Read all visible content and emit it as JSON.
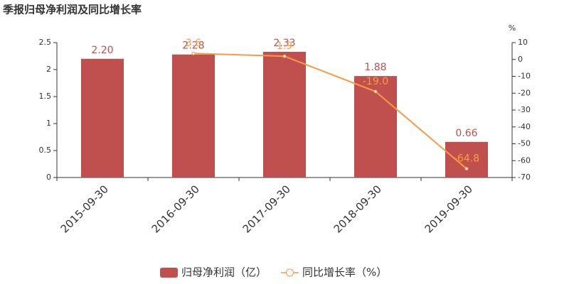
{
  "chart_data": {
    "type": "bar-line",
    "title": "季报归母净利润及同比增长率",
    "y2_label": "%",
    "categories": [
      "2015-09-30",
      "2016-09-30",
      "2017-09-30",
      "2018-09-30",
      "2019-09-30"
    ],
    "series": [
      {
        "name": "归母净利润（亿）",
        "type": "bar",
        "color": "#c0504d",
        "values": [
          2.2,
          2.28,
          2.33,
          1.88,
          0.66
        ],
        "value_labels": [
          "2.20",
          "2.28",
          "2.33",
          "1.88",
          "0.66"
        ]
      },
      {
        "name": "同比增长率（%）",
        "type": "line",
        "axis": "y2",
        "color": "#f79b46",
        "values": [
          null,
          3.6,
          1.9,
          -19.0,
          -64.8
        ],
        "value_labels": [
          null,
          "3.6",
          "1.9",
          "-19.0",
          "-64.8"
        ]
      }
    ],
    "ylim": [
      0,
      2.5
    ],
    "yticks": [
      0,
      0.5,
      1,
      1.5,
      2,
      2.5
    ],
    "y2lim": [
      -70,
      10
    ],
    "y2ticks": [
      -70,
      -60,
      -50,
      -40,
      -30,
      -20,
      -10,
      0,
      10
    ],
    "legend": "bottom"
  }
}
